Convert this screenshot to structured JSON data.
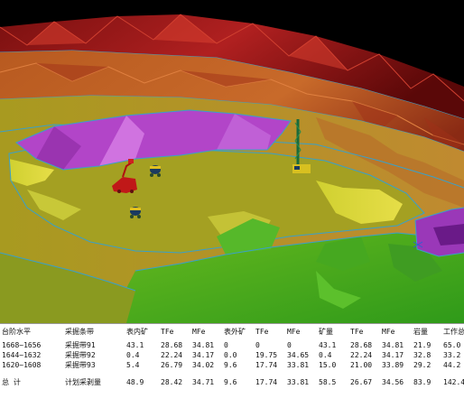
{
  "columns": [
    "台阶水平",
    "采掘条带",
    "表内矿",
    "TFe",
    "MFe",
    "表外矿",
    "TFe",
    "MFe",
    "矿量",
    "TFe",
    "MFe",
    "岩量",
    "工作总"
  ],
  "rows": [
    [
      "1668~1656",
      "采掘带91",
      "43.1",
      "28.68",
      "34.81",
      "0",
      "0",
      "0",
      "43.1",
      "28.68",
      "34.81",
      "21.9",
      "65.0"
    ],
    [
      "1644~1632",
      "采掘带92",
      "0.4",
      "22.24",
      "34.17",
      "0.0",
      "19.75",
      "34.65",
      "0.4",
      "22.24",
      "34.17",
      "32.8",
      "33.2"
    ],
    [
      "1620~1608",
      "采掘带93",
      "5.4",
      "26.79",
      "34.02",
      "9.6",
      "17.74",
      "33.81",
      "15.0",
      "21.00",
      "33.89",
      "29.2",
      "44.2"
    ]
  ],
  "total": [
    "总    计",
    "计划采剥量",
    "48.9",
    "28.42",
    "34.71",
    "9.6",
    "17.74",
    "33.81",
    "58.5",
    "26.67",
    "34.56",
    "83.9",
    "142.4"
  ],
  "scene_icons": [
    "excavator-icon",
    "loader-icon",
    "truck-icon",
    "drill-rig-icon"
  ]
}
